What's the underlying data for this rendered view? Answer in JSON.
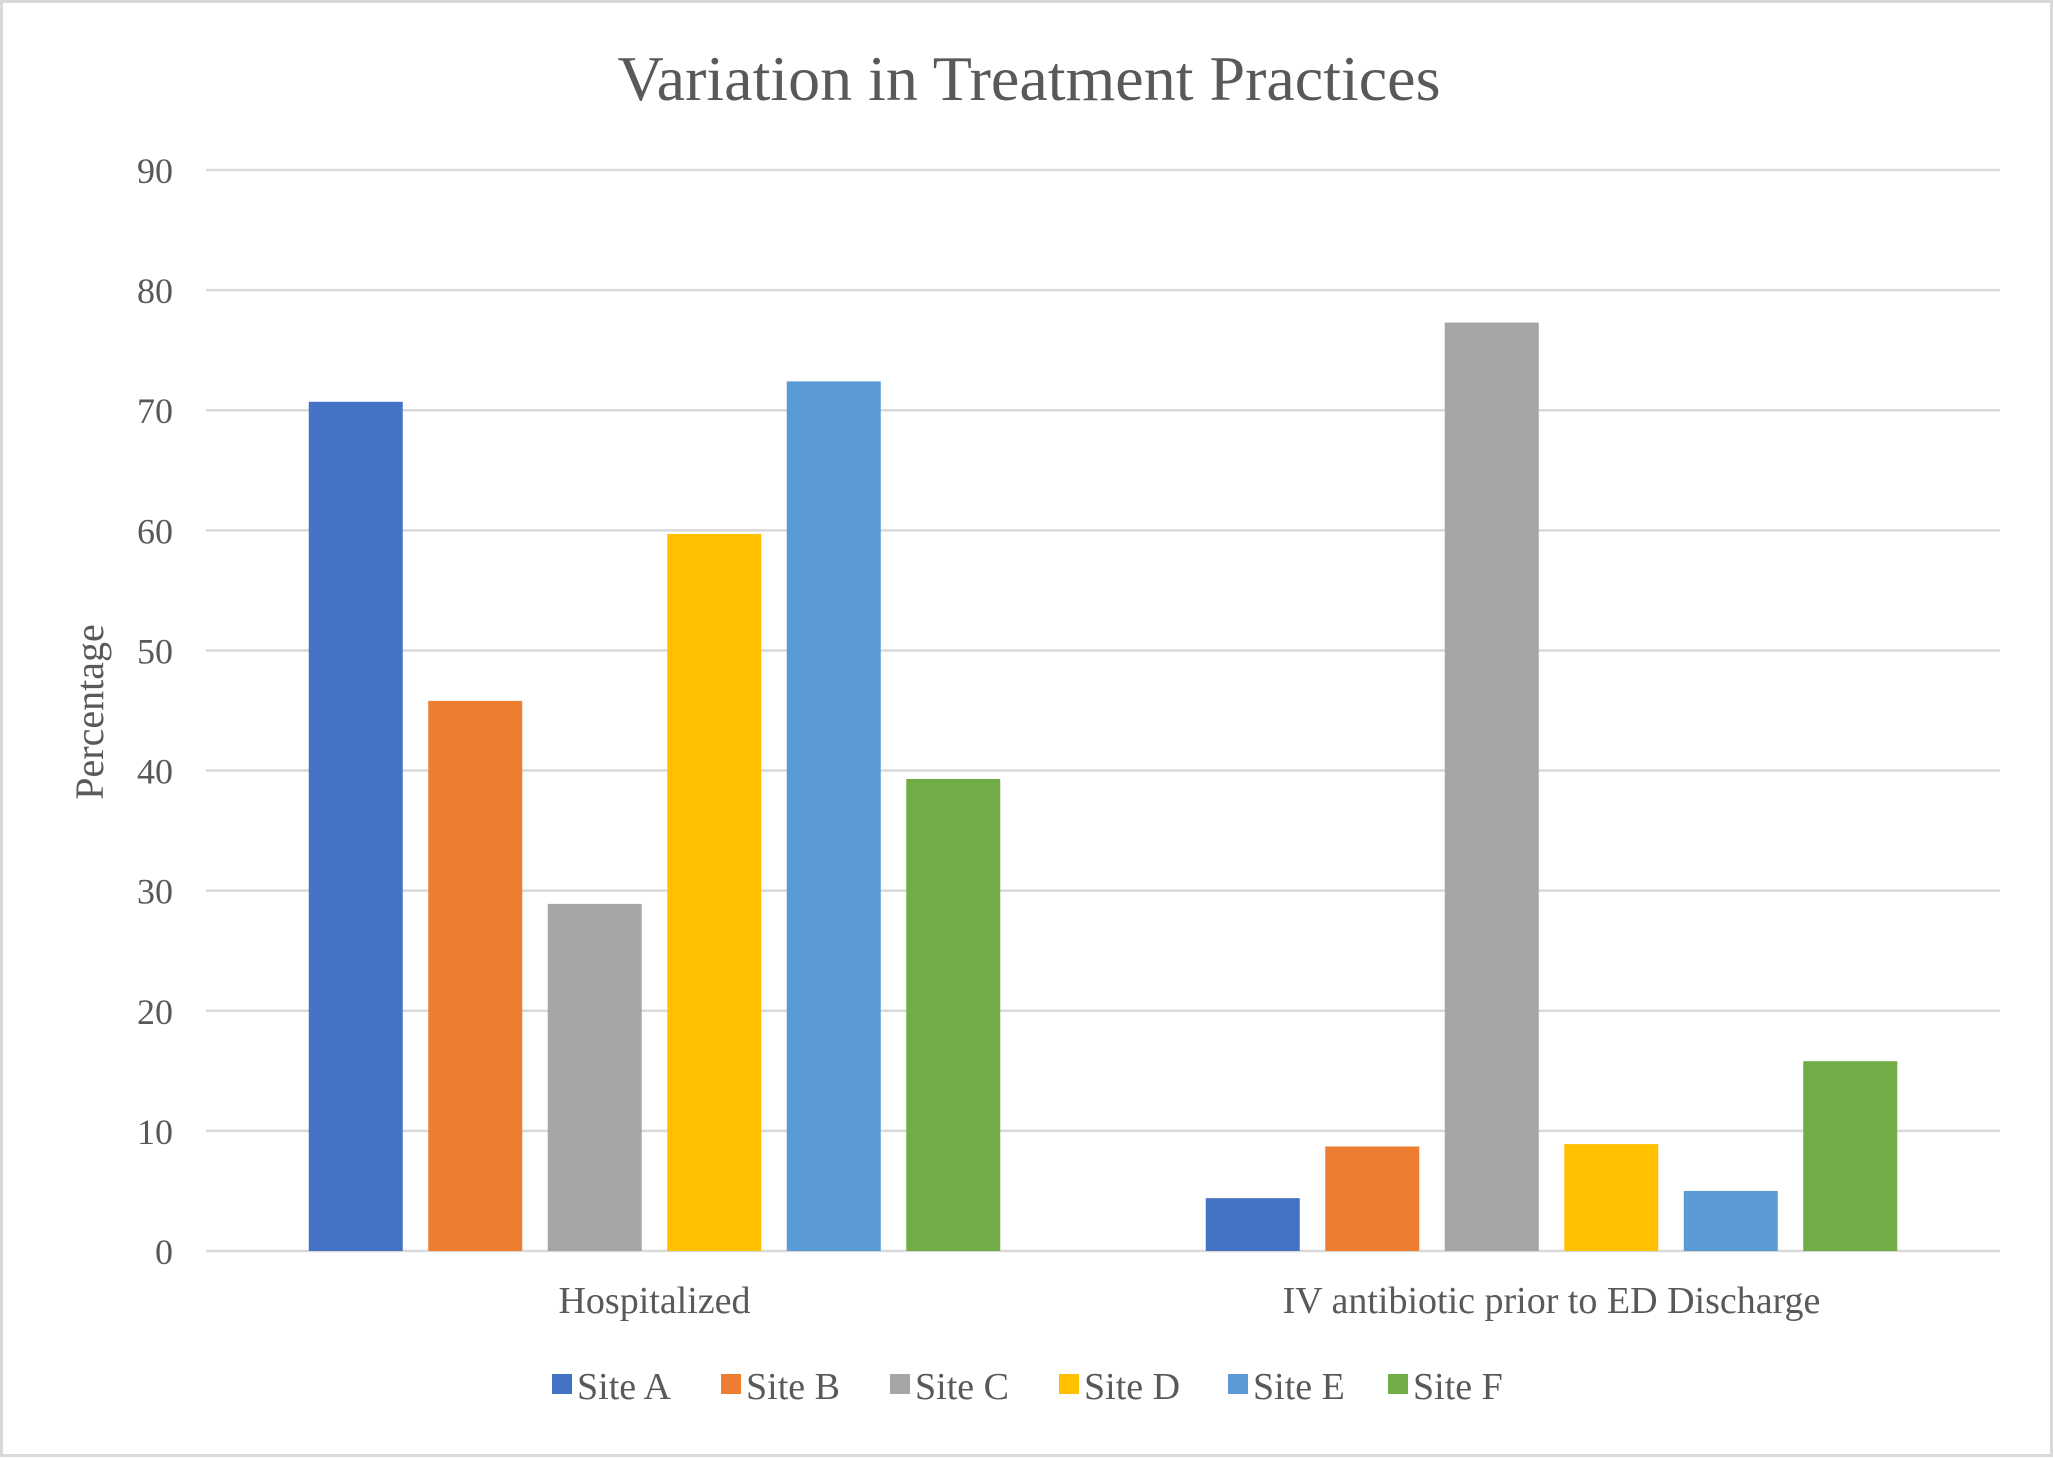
{
  "chart_data": {
    "type": "bar",
    "title": "Variation in Treatment Practices",
    "xlabel": "",
    "ylabel": "Percentage",
    "ylim": [
      0,
      90
    ],
    "yticks": [
      0,
      10,
      20,
      30,
      40,
      50,
      60,
      70,
      80,
      90
    ],
    "categories": [
      "Hospitalized",
      "IV antibiotic prior to ED Discharge"
    ],
    "series": [
      {
        "name": "Site A",
        "color": "#4472c4",
        "values": [
          70.7,
          4.4
        ]
      },
      {
        "name": "Site B",
        "color": "#ed7d31",
        "values": [
          45.8,
          8.7
        ]
      },
      {
        "name": "Site C",
        "color": "#a5a5a5",
        "values": [
          28.9,
          77.3
        ]
      },
      {
        "name": "Site D",
        "color": "#ffc000",
        "values": [
          59.7,
          8.9
        ]
      },
      {
        "name": "Site E",
        "color": "#5b9bd5",
        "values": [
          72.4,
          5.0
        ]
      },
      {
        "name": "Site F",
        "color": "#70ad47",
        "values": [
          39.3,
          15.8
        ]
      }
    ],
    "grid": true,
    "legend": "bottom"
  }
}
